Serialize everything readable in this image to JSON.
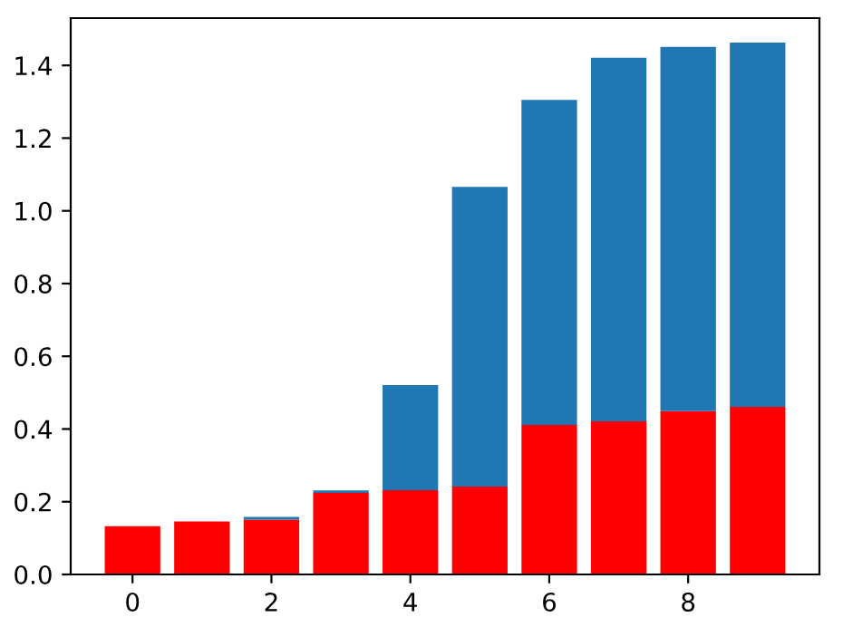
{
  "chart_data": {
    "type": "bar",
    "x": [
      0,
      1,
      2,
      3,
      4,
      5,
      6,
      7,
      8,
      9
    ],
    "stacked": true,
    "series": [
      {
        "color": "#ff0000",
        "values": [
          0.133,
          0.146,
          0.151,
          0.224,
          0.232,
          0.242,
          0.411,
          0.421,
          0.449,
          0.461
        ]
      },
      {
        "color": "#1f77b4",
        "values": [
          null,
          null,
          0.007,
          0.007,
          0.289,
          0.824,
          0.894,
          1.0,
          1.002,
          1.002
        ]
      }
    ],
    "xlim": [
      -0.89,
      9.89
    ],
    "xticks": [
      0,
      2,
      4,
      6,
      8
    ],
    "ylim": [
      0,
      1.53
    ],
    "yticks": [
      {
        "value": 0,
        "label": "0.0"
      },
      0.2,
      0.4,
      0.6,
      0.8,
      {
        "value": 1,
        "label": "1.0"
      },
      1.2,
      1.4
    ],
    "grid": false,
    "legend": false
  }
}
